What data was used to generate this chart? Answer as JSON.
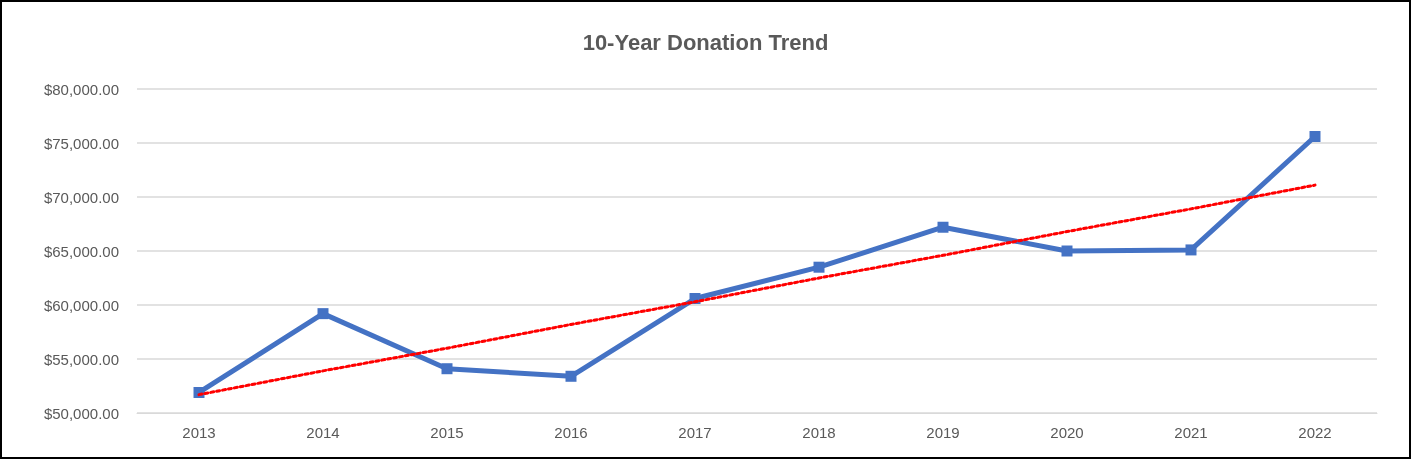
{
  "chart_data": {
    "type": "line",
    "title": "10-Year Donation Trend",
    "categories": [
      "2013",
      "2014",
      "2015",
      "2016",
      "2017",
      "2018",
      "2019",
      "2020",
      "2021",
      "2022"
    ],
    "series": [
      {
        "color": "#4472c4",
        "marker": "square",
        "line_style": "solid",
        "values": [
          51900,
          59200,
          54100,
          53400,
          60600,
          63500,
          67200,
          65000,
          65100,
          75600
        ]
      },
      {
        "type": "line",
        "color": "#ff0000",
        "marker": "none",
        "line_style": "dotted",
        "values": [
          51700,
          53900,
          56000,
          58200,
          60300,
          62500,
          64600,
          66800,
          68900,
          71100
        ]
      }
    ],
    "ylim": [
      50000,
      80000
    ],
    "yticks": [
      {
        "value": 50000,
        "label": "$50,000.00"
      },
      {
        "value": 55000,
        "label": "$55,000.00"
      },
      {
        "value": 60000,
        "label": "$60,000.00"
      },
      {
        "value": 65000,
        "label": "$65,000.00"
      },
      {
        "value": 70000,
        "label": "$70,000.00"
      },
      {
        "value": 75000,
        "label": "$75,000.00"
      },
      {
        "value": 80000,
        "label": "$80,000.00"
      }
    ],
    "grid": "y"
  }
}
